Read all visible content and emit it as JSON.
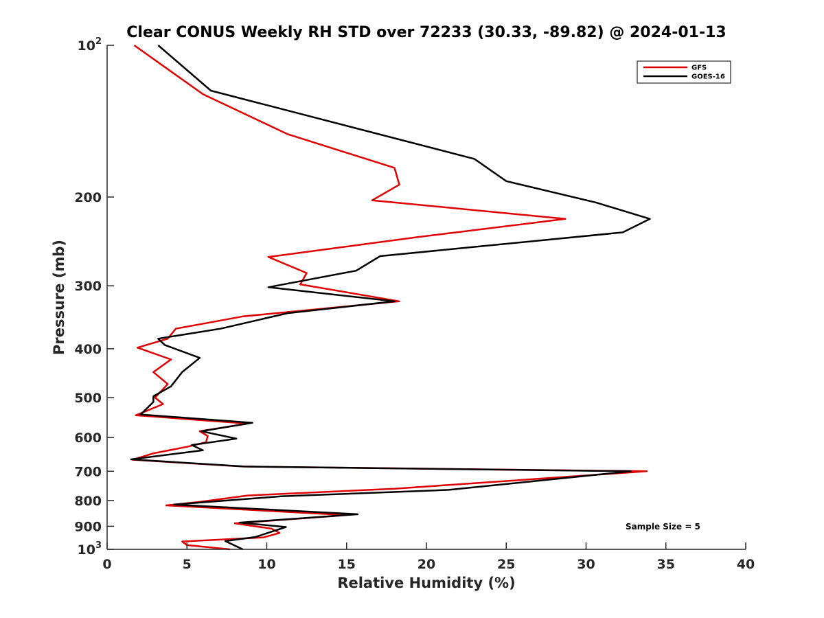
{
  "chart_data": {
    "type": "line",
    "title": "Clear CONUS Weekly RH STD over 72233 (30.33, -89.82) @ 2024-01-13",
    "xlabel": "Relative Humidity (%)",
    "ylabel": "Pressure (mb)",
    "xlim": [
      0,
      40
    ],
    "ylim": [
      100,
      1000
    ],
    "y_scale": "log",
    "y_reversed": true,
    "x_ticks": [
      0,
      5,
      10,
      15,
      20,
      25,
      30,
      35,
      40
    ],
    "x_tick_labels": [
      "0",
      "5",
      "10",
      "15",
      "20",
      "25",
      "30",
      "35",
      "40"
    ],
    "y_ticks": [
      100,
      200,
      300,
      400,
      500,
      600,
      700,
      800,
      900,
      1000
    ],
    "y_tick_labels": [
      {
        "base": "10",
        "exp": "2"
      },
      {
        "text": "200"
      },
      {
        "text": "300"
      },
      {
        "text": "400"
      },
      {
        "text": "500"
      },
      {
        "text": "600"
      },
      {
        "text": "700"
      },
      {
        "text": "800"
      },
      {
        "text": "900"
      },
      {
        "base": "10",
        "exp": "3"
      }
    ],
    "grid": false,
    "legend_position": "top-right",
    "annotation": "Sample Size = 5",
    "series": [
      {
        "name": "GFS",
        "color": "#e00000",
        "points": [
          [
            1.7,
            100
          ],
          [
            6.0,
            125
          ],
          [
            11.3,
            150
          ],
          [
            18.0,
            175
          ],
          [
            18.3,
            189
          ],
          [
            16.6,
            203
          ],
          [
            28.7,
            221
          ],
          [
            19.5,
            240
          ],
          [
            10.1,
            263
          ],
          [
            12.5,
            283
          ],
          [
            12.1,
            298
          ],
          [
            18.3,
            322
          ],
          [
            8.5,
            345
          ],
          [
            4.3,
            365
          ],
          [
            3.8,
            382
          ],
          [
            1.9,
            398
          ],
          [
            4.0,
            420
          ],
          [
            2.9,
            445
          ],
          [
            3.8,
            470
          ],
          [
            3.0,
            500
          ],
          [
            3.5,
            515
          ],
          [
            1.8,
            542
          ],
          [
            8.8,
            563
          ],
          [
            5.8,
            583
          ],
          [
            6.3,
            596
          ],
          [
            6.2,
            613
          ],
          [
            5.0,
            626
          ],
          [
            2.9,
            645
          ],
          [
            1.6,
            664
          ],
          [
            8.5,
            685
          ],
          [
            33.8,
            700
          ],
          [
            25.5,
            730
          ],
          [
            18.0,
            758
          ],
          [
            8.8,
            782
          ],
          [
            5.8,
            805
          ],
          [
            3.7,
            818
          ],
          [
            15.0,
            855
          ],
          [
            8.0,
            888
          ],
          [
            10.3,
            910
          ],
          [
            10.8,
            928
          ],
          [
            9.8,
            947
          ],
          [
            4.7,
            965
          ],
          [
            5.0,
            981
          ],
          [
            7.7,
            1000
          ]
        ]
      },
      {
        "name": "GOES-16",
        "color": "#000000",
        "points": [
          [
            3.2,
            100
          ],
          [
            6.5,
            123
          ],
          [
            23.0,
            168
          ],
          [
            25.0,
            186
          ],
          [
            30.6,
            205
          ],
          [
            34.0,
            221
          ],
          [
            32.3,
            235
          ],
          [
            17.1,
            262
          ],
          [
            15.6,
            280
          ],
          [
            10.1,
            302
          ],
          [
            18.0,
            322
          ],
          [
            11.3,
            340
          ],
          [
            7.1,
            365
          ],
          [
            3.2,
            382
          ],
          [
            3.6,
            393
          ],
          [
            5.8,
            417
          ],
          [
            4.7,
            445
          ],
          [
            4.0,
            475
          ],
          [
            2.9,
            497
          ],
          [
            2.9,
            510
          ],
          [
            2.1,
            540
          ],
          [
            9.1,
            561
          ],
          [
            5.9,
            583
          ],
          [
            8.1,
            603
          ],
          [
            5.3,
            621
          ],
          [
            6.0,
            636
          ],
          [
            1.5,
            663
          ],
          [
            8.6,
            685
          ],
          [
            32.8,
            700
          ],
          [
            21.4,
            762
          ],
          [
            10.9,
            785
          ],
          [
            4.2,
            815
          ],
          [
            15.7,
            852
          ],
          [
            8.3,
            885
          ],
          [
            11.2,
            903
          ],
          [
            9.3,
            945
          ],
          [
            7.4,
            963
          ],
          [
            8.5,
            1000
          ]
        ]
      }
    ]
  }
}
